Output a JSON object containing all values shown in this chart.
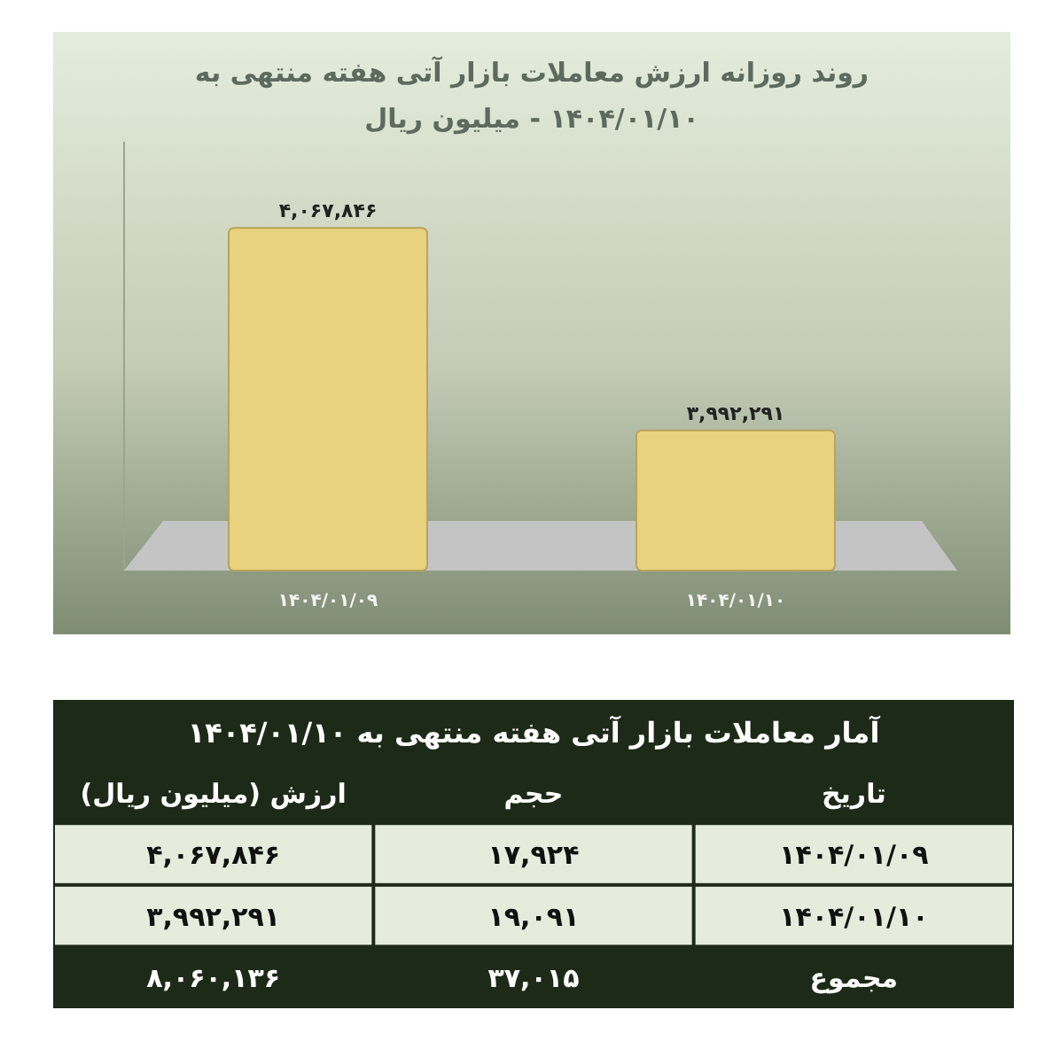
{
  "chart_data": [
    {
      "type": "bar",
      "title": "روند روزانه ارزش معاملات بازار آتی هفته منتهی به ۱۴۰۴/۰۱/۱۰ - میلیون ریال",
      "categories": [
        "۱۴۰۴/۰۱/۰۹",
        "۱۴۰۴/۰۱/۱۰"
      ],
      "values": [
        4067846,
        3992291
      ],
      "value_labels": [
        "۴,۰۶۷,۸۴۶",
        "۳,۹۹۲,۲۹۱"
      ],
      "color": "#e8d27e",
      "ylim": [
        3940000,
        4100000
      ]
    },
    {
      "type": "other",
      "title": "آمار معاملات بازار آتی هفته منتهی به ۱۴۰۴/۰۱/۱۰",
      "annotations": [
        "تاریخ",
        "حجم",
        "ارزش (میلیون ریال)",
        "۱۴۰۴/۰۱/۰۹",
        "۱۷,۹۲۴",
        "۴,۰۶۷,۸۴۶",
        "۱۴۰۴/۰۱/۱۰",
        "۱۹,۰۹۱",
        "۳,۹۹۲,۲۹۱",
        "مجموع",
        "۳۷,۰۱۵",
        "۸,۰۶۰,۱۳۶"
      ]
    }
  ]
}
